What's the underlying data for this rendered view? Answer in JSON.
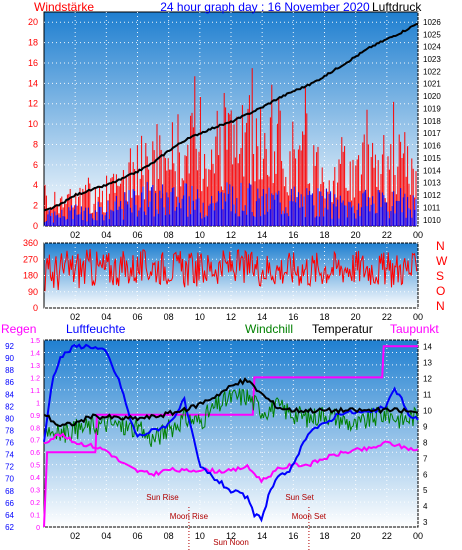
{
  "colors": {
    "gradient_top": "#1f7fd0",
    "gradient_bottom": "#ffffff",
    "wind_red": "#ff0000",
    "wind_blue": "#0000ff",
    "pressure": "#000000",
    "humidity": "#0000ff",
    "windchill": "#008000",
    "temperature": "#000000",
    "dewpoint": "#ff00ff",
    "rain": "#ff00ff",
    "sun_label": "#b00000",
    "moon_label": "#b00000",
    "grid": "#ffffff"
  },
  "chart_data": [
    {
      "type": "bar",
      "title": "24 hour graph day : 16 November 2020",
      "left_label": "Windstärke",
      "right_label": "Luftdruck",
      "x_ticks": [
        "02",
        "04",
        "06",
        "08",
        "10",
        "12",
        "14",
        "16",
        "18",
        "20",
        "22",
        "00"
      ],
      "y_left_ticks": [
        "0",
        "2",
        "4",
        "6",
        "8",
        "10",
        "12",
        "14",
        "16",
        "18",
        "20"
      ],
      "y_left_range": [
        0,
        21
      ],
      "y_right_ticks": [
        "1010",
        "1011",
        "1012",
        "1013",
        "1014",
        "1015",
        "1016",
        "1017",
        "1018",
        "1019",
        "1020",
        "1021",
        "1022",
        "1023",
        "1024",
        "1025",
        "1026"
      ],
      "y_right_range": [
        1009.5,
        1026.8
      ],
      "series": [
        {
          "name": "Windstärke",
          "hours": [
            0,
            1,
            2,
            3,
            4,
            5,
            6,
            7,
            8,
            9,
            10,
            11,
            12,
            13,
            14,
            15,
            16,
            17,
            18,
            19,
            20,
            21,
            22,
            23,
            24
          ],
          "gust": [
            3,
            4,
            4,
            5,
            5,
            6,
            9,
            9,
            11,
            12,
            11,
            13,
            14,
            12,
            10,
            12,
            11,
            10,
            9,
            8,
            8,
            10,
            9,
            10,
            6
          ],
          "avg": [
            1.5,
            1.5,
            2,
            2,
            2.5,
            3,
            4,
            4,
            4,
            4,
            3.5,
            4,
            4,
            4,
            3.5,
            4,
            4,
            3.5,
            3.5,
            3,
            3,
            3.5,
            3,
            3.5,
            2.5
          ]
        },
        {
          "name": "Luftdruck",
          "hours": [
            0,
            1,
            2,
            3,
            4,
            5,
            6,
            7,
            8,
            9,
            10,
            11,
            12,
            13,
            14,
            15,
            16,
            17,
            18,
            19,
            20,
            21,
            22,
            23,
            24
          ],
          "values": [
            1010.7,
            1011.2,
            1012.0,
            1012.4,
            1012.8,
            1013.3,
            1013.9,
            1014.6,
            1015.6,
            1016.4,
            1017.0,
            1017.5,
            1017.9,
            1018.5,
            1019.1,
            1019.8,
            1020.4,
            1020.9,
            1021.6,
            1022.4,
            1023.2,
            1024.0,
            1024.6,
            1025.2,
            1025.9
          ]
        }
      ]
    },
    {
      "type": "line",
      "right_letters": [
        "N",
        "W",
        "S",
        "O",
        "N"
      ],
      "x_ticks": [
        "02",
        "04",
        "06",
        "08",
        "10",
        "12",
        "14",
        "16",
        "18",
        "20",
        "22",
        "00"
      ],
      "y_ticks": [
        "0",
        "90",
        "180",
        "270",
        "360"
      ],
      "y_range": [
        0,
        360
      ],
      "series": [
        {
          "name": "Windrichtung",
          "hours": [
            0,
            1,
            2,
            3,
            4,
            5,
            6,
            7,
            8,
            9,
            10,
            11,
            12,
            13,
            14,
            15,
            16,
            17,
            18,
            19,
            20,
            21,
            22,
            23,
            24
          ],
          "low": [
            60,
            90,
            100,
            110,
            110,
            120,
            120,
            130,
            130,
            110,
            120,
            130,
            140,
            130,
            120,
            120,
            120,
            110,
            120,
            130,
            130,
            120,
            110,
            120,
            110
          ],
          "high": [
            300,
            320,
            330,
            330,
            320,
            320,
            320,
            330,
            320,
            320,
            310,
            320,
            330,
            320,
            320,
            310,
            320,
            320,
            320,
            320,
            330,
            320,
            310,
            320,
            300
          ]
        }
      ]
    },
    {
      "type": "line",
      "labels": {
        "rain": "Regen",
        "humidity": "Luftfeuchte",
        "windchill": "Windchill",
        "temperature": "Temperatur",
        "dewpoint": "Taupunkt"
      },
      "x_ticks": [
        "02",
        "04",
        "06",
        "08",
        "10",
        "12",
        "14",
        "16",
        "18",
        "20",
        "22",
        "00"
      ],
      "y_rain_ticks": [
        "0",
        "0.1",
        "0.2",
        "0.3",
        "0.4",
        "0.5",
        "0.6",
        "0.7",
        "0.8",
        "0.9",
        "1",
        "1.1",
        "1.2",
        "1.3",
        "1.4",
        "1.5"
      ],
      "y_rain_range": [
        0,
        1.5
      ],
      "y_humidity_ticks": [
        "62",
        "64",
        "66",
        "68",
        "70",
        "72",
        "74",
        "76",
        "78",
        "80",
        "82",
        "84",
        "86",
        "88",
        "90",
        "92"
      ],
      "y_humidity_range": [
        62,
        93
      ],
      "y_temp_ticks": [
        "3",
        "4",
        "5",
        "6",
        "7",
        "8",
        "9",
        "10",
        "11",
        "12",
        "13",
        "14"
      ],
      "y_temp_range": [
        2.7,
        14.4
      ],
      "events": [
        {
          "label": "Sun Rise",
          "hour": 7.6,
          "row": "upper"
        },
        {
          "label": "Sun Set",
          "hour": 16.4,
          "row": "upper"
        },
        {
          "label": "Moon Rise",
          "hour": 9.3,
          "row": "lower"
        },
        {
          "label": "Moon Set",
          "hour": 17.0,
          "row": "lower"
        },
        {
          "label": "Sun Noon",
          "hour": 12.0,
          "row": "bottom"
        }
      ],
      "series": [
        {
          "name": "Luftfeuchte",
          "hours": [
            0,
            0.5,
            1,
            2,
            3,
            4,
            5,
            5.5,
            6,
            7,
            8,
            9,
            10,
            11,
            12,
            13,
            13.5,
            14,
            14.5,
            15,
            16,
            17,
            18,
            19,
            20,
            21,
            22,
            22.5,
            23,
            23.5,
            24
          ],
          "values": [
            76,
            86,
            90,
            92,
            92,
            91,
            85,
            80,
            77,
            78,
            79,
            83,
            72,
            70,
            68,
            67,
            64,
            63.5,
            68,
            70,
            72,
            78,
            79,
            81,
            81,
            81,
            82,
            85,
            83,
            80,
            80
          ]
        },
        {
          "name": "Windchill",
          "hours": [
            0,
            1,
            2,
            3,
            4,
            5,
            6,
            7,
            8,
            9,
            10,
            11,
            12,
            13,
            14,
            15,
            16,
            17,
            18,
            19,
            20,
            21,
            22,
            23,
            24
          ],
          "values": [
            9.0,
            8.5,
            8.8,
            9.0,
            9.2,
            9.0,
            8.8,
            8.2,
            8.8,
            9.5,
            9.3,
            10.2,
            10.8,
            10.9,
            10.0,
            10.2,
            9.8,
            9.5,
            9.8,
            9.5,
            9.0,
            9.5,
            9.8,
            9.4,
            9.7
          ]
        },
        {
          "name": "Temperatur",
          "hours": [
            0,
            1,
            2,
            3,
            4,
            5,
            6,
            7,
            8,
            9,
            10,
            11,
            12,
            13,
            14,
            15,
            16,
            17,
            18,
            19,
            20,
            21,
            22,
            23,
            24
          ],
          "values": [
            9.8,
            9.0,
            9.2,
            9.6,
            9.6,
            9.5,
            9.5,
            9.6,
            9.8,
            10.0,
            10.4,
            10.9,
            11.5,
            11.9,
            11.0,
            10.2,
            10.0,
            10.0,
            10.0,
            10.0,
            10.0,
            10.0,
            10.0,
            10.0,
            9.8
          ]
        },
        {
          "name": "Taupunkt",
          "hours": [
            0,
            1,
            2,
            3,
            4,
            5,
            6,
            7,
            8,
            9,
            10,
            11,
            12,
            13,
            14,
            15,
            16,
            17,
            18,
            19,
            20,
            21,
            22,
            23,
            24
          ],
          "values": [
            8.0,
            8.5,
            8.0,
            7.8,
            7.5,
            6.7,
            6.2,
            6.0,
            6.3,
            6.2,
            6.3,
            6.2,
            6.2,
            6.5,
            5.6,
            6.3,
            6.6,
            6.6,
            7.0,
            7.3,
            7.5,
            7.6,
            8.0,
            7.7,
            7.5
          ]
        },
        {
          "name": "Regen",
          "hours": [
            0,
            0.2,
            0.3,
            3.3,
            3.4,
            13.4,
            13.5,
            21.7,
            21.8,
            24
          ],
          "values": [
            0,
            0.6,
            0.6,
            0.6,
            0.9,
            0.9,
            1.2,
            1.2,
            1.45,
            1.45
          ]
        }
      ]
    }
  ]
}
